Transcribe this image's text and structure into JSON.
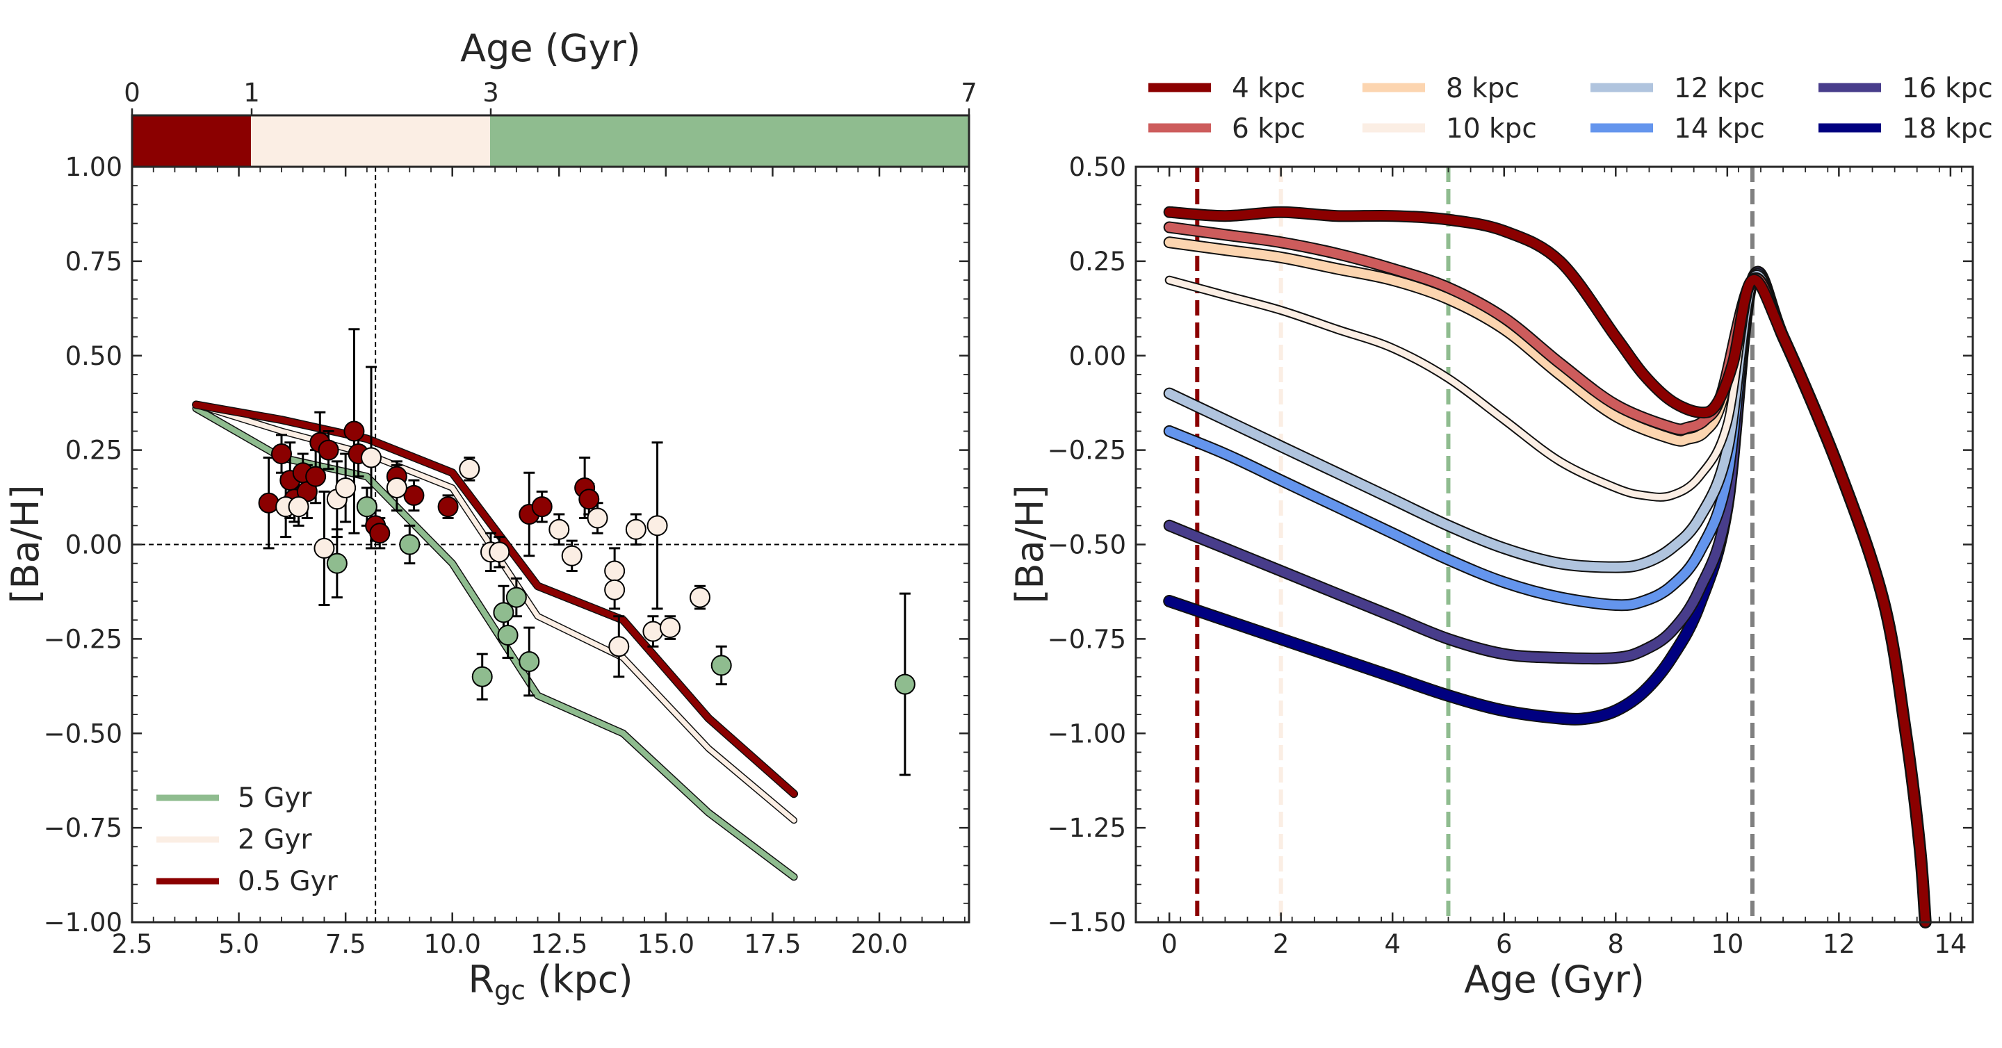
{
  "chart_data": [
    {
      "type": "scatter",
      "xlabel_main": "R",
      "xlabel_sub": "gc",
      "xlabel_unit": " (kpc)",
      "ylabel": "[Ba/H]",
      "xlim": [
        2.5,
        22.1
      ],
      "ylim": [
        -1.0,
        1.0
      ],
      "xticks": [
        2.5,
        5.0,
        7.5,
        10.0,
        12.5,
        15.0,
        17.5,
        20.0
      ],
      "xtick_labels": [
        "2.5",
        "5.0",
        "7.5",
        "10.0",
        "12.5",
        "15.0",
        "17.5",
        "20.0"
      ],
      "yticks": [
        -1.0,
        -0.75,
        -0.5,
        -0.25,
        0.0,
        0.25,
        0.5,
        0.75,
        1.0
      ],
      "ytick_labels": [
        "−1.00",
        "−0.75",
        "−0.50",
        "−0.25",
        "0.00",
        "0.25",
        "0.50",
        "0.75",
        "1.00"
      ],
      "grid": false,
      "reference_lines": {
        "vertical_x": 8.2,
        "horizontal_y": 0.0
      },
      "age_colorbar": {
        "label": "Age (Gyr)",
        "ticks": [
          0,
          1,
          3,
          7
        ],
        "tick_labels": [
          "0",
          "1",
          "3",
          "7"
        ],
        "bins": [
          {
            "from": 0,
            "to": 1,
            "color": "#8b0000"
          },
          {
            "from": 1,
            "to": 3,
            "color": "#fbeee4"
          },
          {
            "from": 3,
            "to": 7,
            "color": "#8fbc8f"
          }
        ]
      },
      "legend_position": "lower-left",
      "series": [
        {
          "name": "5 Gyr",
          "color": "#8fbc8f",
          "line_width": 8,
          "x": [
            4,
            6,
            8,
            10,
            12,
            14,
            16,
            18
          ],
          "y": [
            0.36,
            0.23,
            0.18,
            -0.05,
            -0.4,
            -0.5,
            -0.71,
            -0.88
          ]
        },
        {
          "name": "2 Gyr",
          "color": "#fbeee4",
          "line_width": 7,
          "x": [
            4,
            6,
            8,
            10,
            12,
            14,
            16,
            18
          ],
          "y": [
            0.37,
            0.3,
            0.24,
            0.15,
            -0.19,
            -0.3,
            -0.54,
            -0.73
          ]
        },
        {
          "name": "0.5 Gyr",
          "color": "#8b0000",
          "line_width": 9,
          "x": [
            4,
            6,
            8,
            10,
            12,
            14,
            16,
            18
          ],
          "y": [
            0.37,
            0.33,
            0.28,
            0.19,
            -0.11,
            -0.2,
            -0.46,
            -0.66
          ]
        }
      ],
      "points": [
        {
          "x": 5.7,
          "y": 0.11,
          "err": 0.12,
          "color": "#8b0000"
        },
        {
          "x": 6.0,
          "y": 0.24,
          "err": 0.05,
          "color": "#8b0000"
        },
        {
          "x": 6.2,
          "y": 0.17,
          "err": 0.1,
          "color": "#8b0000"
        },
        {
          "x": 6.3,
          "y": 0.12,
          "err": 0.06,
          "color": "#8b0000"
        },
        {
          "x": 6.5,
          "y": 0.19,
          "err": 0.05,
          "color": "#8b0000"
        },
        {
          "x": 6.6,
          "y": 0.14,
          "err": 0.07,
          "color": "#8b0000"
        },
        {
          "x": 6.8,
          "y": 0.18,
          "err": 0.07,
          "color": "#8b0000"
        },
        {
          "x": 6.9,
          "y": 0.27,
          "err": 0.08,
          "color": "#8b0000"
        },
        {
          "x": 7.1,
          "y": 0.25,
          "err": 0.05,
          "color": "#8b0000"
        },
        {
          "x": 7.7,
          "y": 0.3,
          "err": 0.27,
          "color": "#8b0000"
        },
        {
          "x": 7.8,
          "y": 0.24,
          "err": 0.06,
          "color": "#8b0000"
        },
        {
          "x": 8.2,
          "y": 0.05,
          "err": 0.04,
          "color": "#8b0000"
        },
        {
          "x": 8.3,
          "y": 0.03,
          "err": 0.04,
          "color": "#8b0000"
        },
        {
          "x": 8.7,
          "y": 0.18,
          "err": 0.04,
          "color": "#8b0000"
        },
        {
          "x": 9.1,
          "y": 0.13,
          "err": 0.04,
          "color": "#8b0000"
        },
        {
          "x": 9.9,
          "y": 0.1,
          "err": 0.03,
          "color": "#8b0000"
        },
        {
          "x": 11.8,
          "y": 0.08,
          "err": 0.11,
          "color": "#8b0000"
        },
        {
          "x": 12.1,
          "y": 0.1,
          "err": 0.04,
          "color": "#8b0000"
        },
        {
          "x": 13.1,
          "y": 0.15,
          "err": 0.08,
          "color": "#8b0000"
        },
        {
          "x": 13.2,
          "y": 0.12,
          "err": 0.04,
          "color": "#8b0000"
        },
        {
          "x": 6.1,
          "y": 0.1,
          "err": 0.08,
          "color": "#fbeee4"
        },
        {
          "x": 6.4,
          "y": 0.1,
          "err": 0.05,
          "color": "#fbeee4"
        },
        {
          "x": 7.0,
          "y": -0.01,
          "err": 0.15,
          "color": "#fbeee4"
        },
        {
          "x": 7.3,
          "y": 0.12,
          "err": 0.1,
          "color": "#fbeee4"
        },
        {
          "x": 7.5,
          "y": 0.15,
          "err": 0.09,
          "color": "#fbeee4"
        },
        {
          "x": 8.1,
          "y": 0.23,
          "err": 0.24,
          "color": "#fbeee4"
        },
        {
          "x": 8.7,
          "y": 0.15,
          "err": 0.06,
          "color": "#fbeee4"
        },
        {
          "x": 10.4,
          "y": 0.2,
          "err": 0.03,
          "color": "#fbeee4"
        },
        {
          "x": 10.9,
          "y": -0.02,
          "err": 0.05,
          "color": "#fbeee4"
        },
        {
          "x": 11.1,
          "y": -0.02,
          "err": 0.04,
          "color": "#fbeee4"
        },
        {
          "x": 12.5,
          "y": 0.04,
          "err": 0.04,
          "color": "#fbeee4"
        },
        {
          "x": 12.8,
          "y": -0.03,
          "err": 0.04,
          "color": "#fbeee4"
        },
        {
          "x": 13.4,
          "y": 0.07,
          "err": 0.04,
          "color": "#fbeee4"
        },
        {
          "x": 13.8,
          "y": -0.07,
          "err": 0.06,
          "color": "#fbeee4"
        },
        {
          "x": 13.8,
          "y": -0.12,
          "err": 0.05,
          "color": "#fbeee4"
        },
        {
          "x": 13.9,
          "y": -0.27,
          "err": 0.08,
          "color": "#fbeee4"
        },
        {
          "x": 14.3,
          "y": 0.04,
          "err": 0.04,
          "color": "#fbeee4"
        },
        {
          "x": 14.7,
          "y": -0.23,
          "err": 0.04,
          "color": "#fbeee4"
        },
        {
          "x": 14.8,
          "y": 0.05,
          "err": 0.22,
          "color": "#fbeee4"
        },
        {
          "x": 15.1,
          "y": -0.22,
          "err": 0.03,
          "color": "#fbeee4"
        },
        {
          "x": 15.8,
          "y": -0.14,
          "err": 0.03,
          "color": "#fbeee4"
        },
        {
          "x": 7.3,
          "y": -0.05,
          "err": 0.09,
          "color": "#8fbc8f"
        },
        {
          "x": 8.0,
          "y": 0.1,
          "err": 0.05,
          "color": "#8fbc8f"
        },
        {
          "x": 9.0,
          "y": 0.0,
          "err": 0.05,
          "color": "#8fbc8f"
        },
        {
          "x": 10.7,
          "y": -0.35,
          "err": 0.06,
          "color": "#8fbc8f"
        },
        {
          "x": 11.2,
          "y": -0.18,
          "err": 0.07,
          "color": "#8fbc8f"
        },
        {
          "x": 11.3,
          "y": -0.24,
          "err": 0.06,
          "color": "#8fbc8f"
        },
        {
          "x": 11.5,
          "y": -0.14,
          "err": 0.05,
          "color": "#8fbc8f"
        },
        {
          "x": 11.8,
          "y": -0.31,
          "err": 0.09,
          "color": "#8fbc8f"
        },
        {
          "x": 16.3,
          "y": -0.32,
          "err": 0.05,
          "color": "#8fbc8f"
        },
        {
          "x": 20.6,
          "y": -0.37,
          "err": 0.24,
          "color": "#8fbc8f"
        }
      ]
    },
    {
      "type": "line",
      "xlabel": "Age (Gyr)",
      "ylabel": "[Ba/H]",
      "xlim": [
        -0.6,
        14.4
      ],
      "ylim": [
        -1.5,
        0.5
      ],
      "xticks": [
        0,
        2,
        4,
        6,
        8,
        10,
        12,
        14
      ],
      "xtick_labels": [
        "0",
        "2",
        "4",
        "6",
        "8",
        "10",
        "12",
        "14"
      ],
      "yticks": [
        -1.5,
        -1.25,
        -1.0,
        -0.75,
        -0.5,
        -0.25,
        0.0,
        0.25,
        0.5
      ],
      "ytick_labels": [
        "−1.50",
        "−1.25",
        "−1.00",
        "−0.75",
        "−0.50",
        "−0.25",
        "0.00",
        "0.25",
        "0.50"
      ],
      "grid": false,
      "legend_position": "top, outside, 4 columns",
      "vertical_lines": [
        {
          "x": 0.5,
          "color": "#8b0000"
        },
        {
          "x": 2.0,
          "color": "#fbeee4"
        },
        {
          "x": 5.0,
          "color": "#8fbc8f"
        },
        {
          "x": 10.45,
          "color": "#808080"
        }
      ],
      "common_tail": {
        "x": [
          10.45,
          11.0,
          12.0,
          12.8,
          13.2,
          13.45,
          13.55
        ],
        "y": [
          0.2,
          0.05,
          -0.3,
          -0.65,
          -1.0,
          -1.3,
          -1.5
        ]
      },
      "series": [
        {
          "name": "4 kpc",
          "color": "#8b0000",
          "line_width": 13,
          "x": [
            0,
            1,
            2,
            3,
            4,
            5,
            6,
            7,
            8,
            8.5,
            9,
            9.5,
            9.8,
            10.1,
            10.45
          ],
          "y": [
            0.38,
            0.37,
            0.38,
            0.37,
            0.37,
            0.36,
            0.33,
            0.25,
            0.05,
            -0.05,
            -0.12,
            -0.15,
            -0.13,
            -0.02,
            0.2
          ]
        },
        {
          "name": "6 kpc",
          "color": "#cd5c5c",
          "line_width": 13,
          "x": [
            0,
            1,
            2,
            3,
            4,
            5,
            6,
            7,
            8,
            9,
            9.3,
            9.6,
            9.9,
            10.45
          ],
          "y": [
            0.34,
            0.32,
            0.3,
            0.27,
            0.23,
            0.18,
            0.1,
            -0.02,
            -0.13,
            -0.19,
            -0.19,
            -0.17,
            -0.1,
            0.2
          ]
        },
        {
          "name": "8 kpc",
          "color": "#fcd5b0",
          "line_width": 13,
          "x": [
            0,
            1,
            2,
            3,
            4,
            5,
            6,
            7,
            8,
            9,
            9.3,
            9.6,
            9.9,
            10.45
          ],
          "y": [
            0.3,
            0.28,
            0.26,
            0.23,
            0.2,
            0.15,
            0.07,
            -0.05,
            -0.16,
            -0.22,
            -0.22,
            -0.2,
            -0.12,
            0.2
          ]
        },
        {
          "name": "10 kpc",
          "color": "#fbeee4",
          "line_width": 9,
          "x": [
            0,
            1,
            2,
            3,
            4,
            5,
            6,
            7,
            8,
            8.5,
            9,
            9.5,
            10,
            10.45
          ],
          "y": [
            0.2,
            0.16,
            0.12,
            0.07,
            0.02,
            -0.06,
            -0.17,
            -0.28,
            -0.35,
            -0.37,
            -0.37,
            -0.32,
            -0.18,
            0.2
          ]
        },
        {
          "name": "12 kpc",
          "color": "#b0c4de",
          "line_width": 13,
          "x": [
            0,
            1,
            2,
            3,
            4,
            5,
            6,
            7,
            8,
            8.5,
            9,
            9.5,
            10,
            10.45
          ],
          "y": [
            -0.1,
            -0.17,
            -0.24,
            -0.31,
            -0.38,
            -0.45,
            -0.51,
            -0.55,
            -0.56,
            -0.55,
            -0.51,
            -0.43,
            -0.25,
            0.2
          ]
        },
        {
          "name": "14 kpc",
          "color": "#6495ed",
          "line_width": 13,
          "x": [
            0,
            1,
            2,
            3,
            4,
            5,
            6,
            7,
            8,
            8.5,
            9,
            9.5,
            10,
            10.45
          ],
          "y": [
            -0.2,
            -0.26,
            -0.33,
            -0.4,
            -0.47,
            -0.54,
            -0.6,
            -0.64,
            -0.66,
            -0.65,
            -0.61,
            -0.52,
            -0.32,
            0.2
          ]
        },
        {
          "name": "16 kpc",
          "color": "#483d8b",
          "line_width": 13,
          "x": [
            0,
            1,
            2,
            3,
            4,
            5,
            6,
            7,
            8,
            8.5,
            9,
            9.5,
            10,
            10.45
          ],
          "y": [
            -0.45,
            -0.51,
            -0.57,
            -0.63,
            -0.69,
            -0.75,
            -0.79,
            -0.8,
            -0.8,
            -0.78,
            -0.73,
            -0.62,
            -0.4,
            0.2
          ]
        },
        {
          "name": "18 kpc",
          "color": "#000080",
          "line_width": 14,
          "x": [
            0,
            1,
            2,
            3,
            4,
            5,
            6,
            7,
            7.5,
            8,
            8.5,
            9,
            9.5,
            10,
            10.45
          ],
          "y": [
            -0.65,
            -0.7,
            -0.75,
            -0.8,
            -0.85,
            -0.9,
            -0.94,
            -0.96,
            -0.96,
            -0.94,
            -0.89,
            -0.8,
            -0.66,
            -0.4,
            0.2
          ]
        }
      ]
    }
  ]
}
